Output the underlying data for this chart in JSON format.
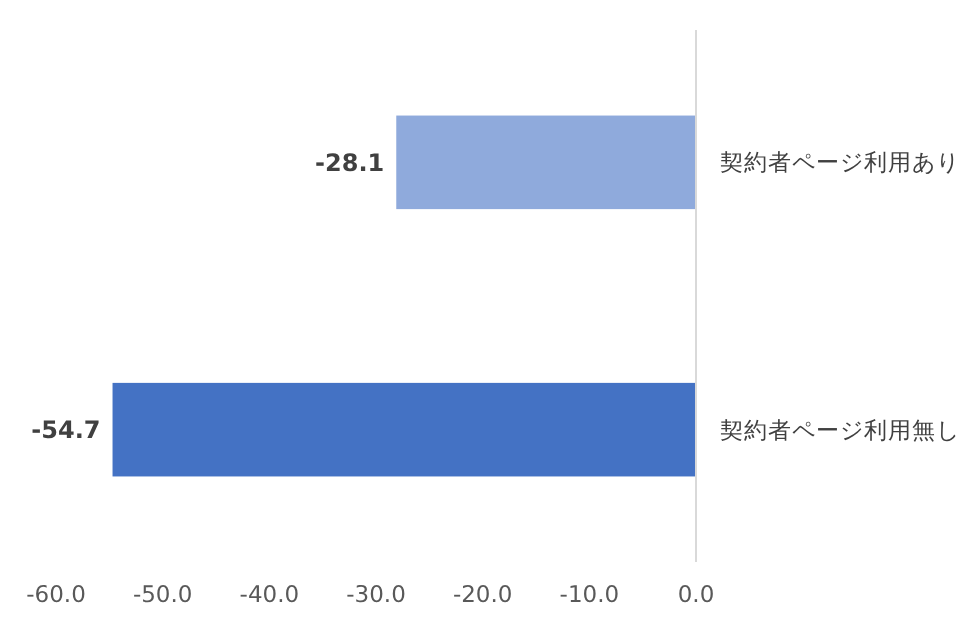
{
  "chart_data": {
    "type": "bar",
    "orientation": "horizontal",
    "categories": [
      "契約者ページ利用あり",
      "契約者ページ利用無し"
    ],
    "values": [
      -28.1,
      -54.7
    ],
    "colors": [
      "#8faadc",
      "#4472c4"
    ],
    "xlim": [
      -60,
      0
    ],
    "xticks": [
      {
        "value": -60,
        "label": "-60.0"
      },
      {
        "value": -50,
        "label": "-50.0"
      },
      {
        "value": -40,
        "label": "-40.0"
      },
      {
        "value": -30,
        "label": "-30.0"
      },
      {
        "value": -20,
        "label": "-20.0"
      },
      {
        "value": -10,
        "label": "-10.0"
      },
      {
        "value": 0,
        "label": "0.0"
      }
    ],
    "data_labels": true,
    "grid": false
  }
}
